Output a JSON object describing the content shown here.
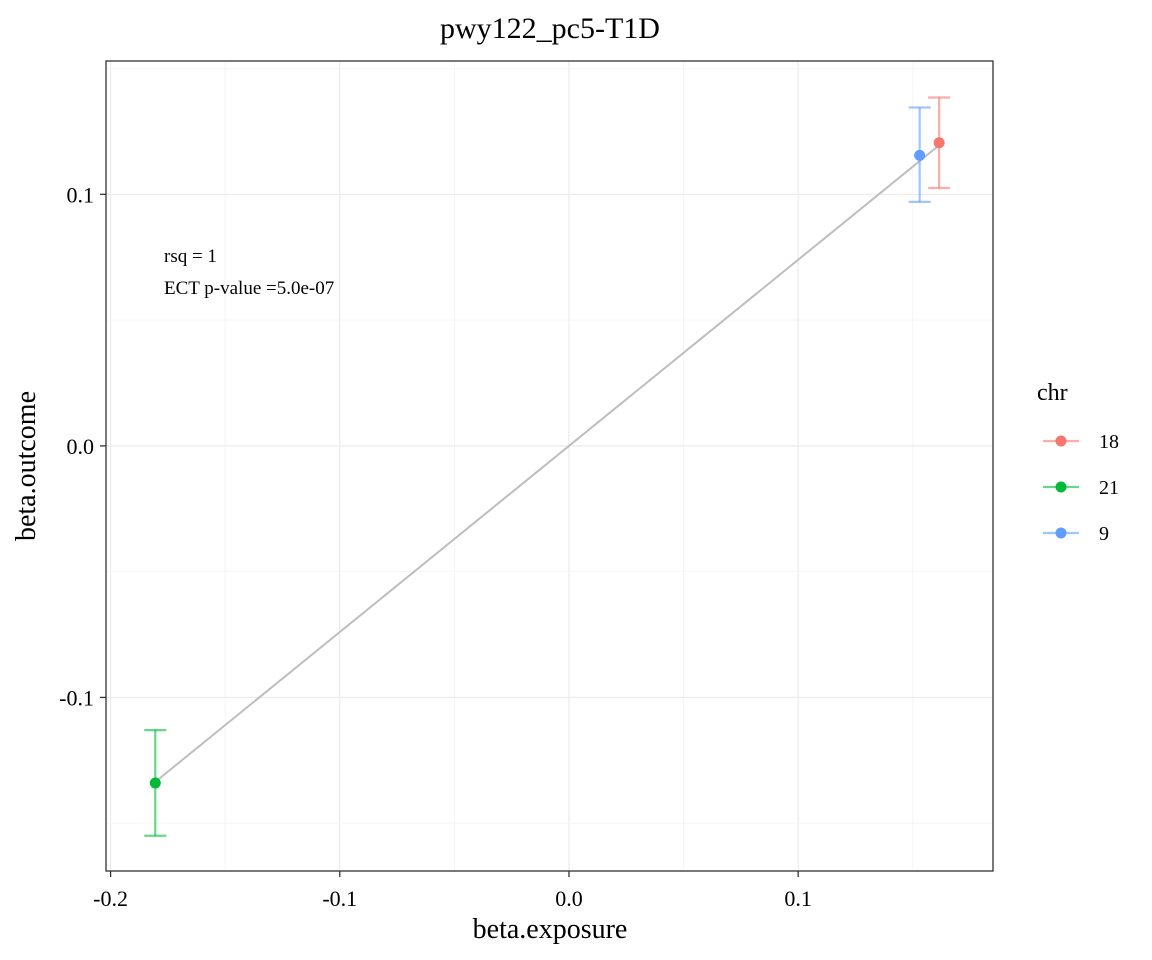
{
  "chart_data": {
    "type": "scatter",
    "title": "pwy122_pc5-T1D",
    "xlabel": "beta.exposure",
    "ylabel": "beta.outcome",
    "xlim": [
      -0.202,
      0.185
    ],
    "ylim": [
      -0.169,
      0.153
    ],
    "x_ticks": [
      -0.2,
      -0.1,
      0.0,
      0.1
    ],
    "x_tick_labels": [
      "-0.2",
      "-0.1",
      "0.0",
      "0.1"
    ],
    "y_ticks": [
      -0.1,
      0.0,
      0.1
    ],
    "y_tick_labels": [
      "-0.1",
      "0.0",
      "0.1"
    ],
    "grid": true,
    "annotations": [
      "rsq =  1",
      "ECT p-value =5.0e-07"
    ],
    "fit_line": {
      "color": "#bebebe",
      "slope": 0.74,
      "intercept": 0.0
    },
    "legend": {
      "title": "chr",
      "position": "right",
      "entries": [
        "18",
        "21",
        "9"
      ]
    },
    "series": [
      {
        "name": "18",
        "color": "#F8766D",
        "x": 0.1615,
        "y": 0.1205,
        "ymin": 0.1025,
        "ymax": 0.1385
      },
      {
        "name": "21",
        "color": "#00BA38",
        "x": -0.1805,
        "y": -0.134,
        "ymin": -0.155,
        "ymax": -0.113
      },
      {
        "name": "9",
        "color": "#619CFF",
        "x": 0.153,
        "y": 0.1155,
        "ymin": 0.097,
        "ymax": 0.1345
      }
    ]
  }
}
